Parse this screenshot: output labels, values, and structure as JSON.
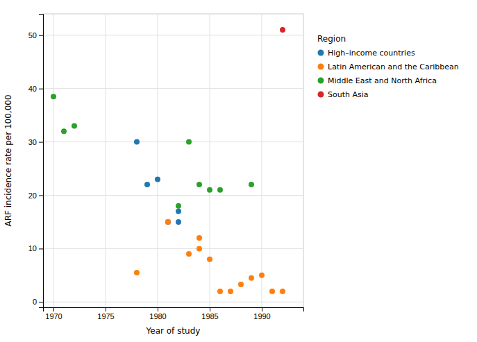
{
  "chart_data": {
    "type": "scatter",
    "xlabel": "Year of study",
    "ylabel": "ARF incidence rate per 100,000",
    "xlim": [
      1969,
      1994
    ],
    "ylim": [
      -1,
      54
    ],
    "xticks": [
      1970,
      1975,
      1980,
      1985,
      1990
    ],
    "yticks": [
      0,
      10,
      20,
      30,
      40,
      50
    ],
    "grid": true,
    "legend": "right",
    "legend_title": "Region",
    "series": [
      {
        "name": "High–income countries",
        "x": [
          1978,
          1979,
          1980,
          1981,
          1982,
          1982
        ],
        "values": [
          30,
          22,
          23,
          15,
          17,
          15
        ]
      },
      {
        "name": "Latin American and the Caribbean",
        "x": [
          1978,
          1981,
          1983,
          1984,
          1984,
          1985,
          1986,
          1987,
          1988,
          1989,
          1990,
          1991,
          1992
        ],
        "values": [
          5.5,
          15,
          9,
          10,
          12,
          8,
          2,
          2,
          3.3,
          4.5,
          5,
          2,
          2
        ]
      },
      {
        "name": "Middle East and North Africa",
        "x": [
          1970,
          1971,
          1972,
          1982,
          1983,
          1984,
          1985,
          1986,
          1989
        ],
        "values": [
          38.5,
          32,
          33,
          18,
          30,
          22,
          21,
          21,
          22
        ]
      },
      {
        "name": "South Asia",
        "x": [
          1992
        ],
        "values": [
          51
        ]
      }
    ]
  }
}
